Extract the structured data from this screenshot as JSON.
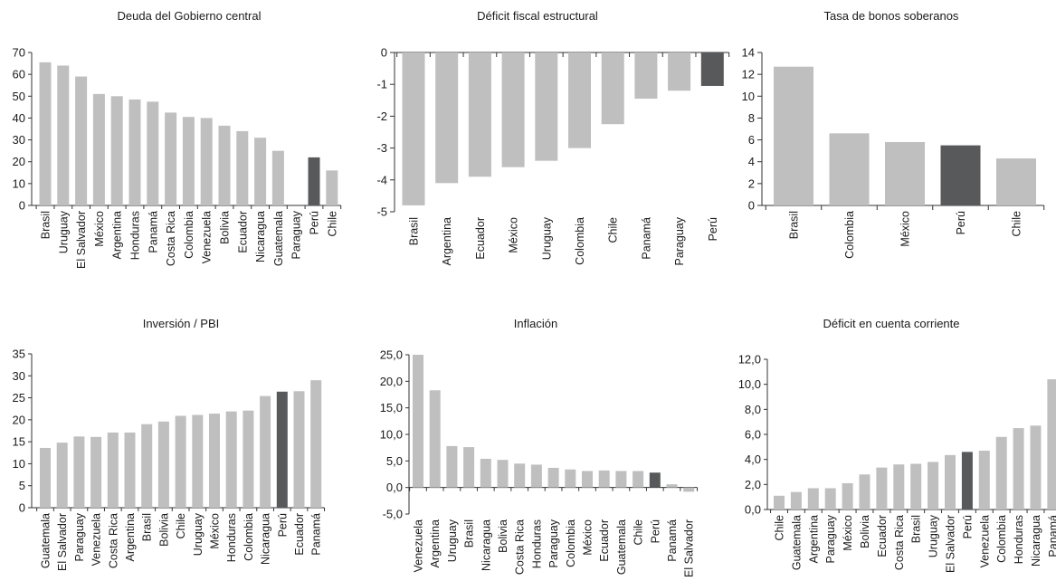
{
  "colors": {
    "bar": "#bfbfbf",
    "highlight": "#58595b",
    "axis": "#333333",
    "text": "#1a1a1a"
  },
  "chart_data": [
    {
      "type": "bar",
      "title": "Deuda del Gobierno central",
      "categories": [
        "Brasil",
        "Uruguay",
        "El Salvador",
        "México",
        "Argentina",
        "Honduras",
        "Panamá",
        "Costa Rica",
        "Colombia",
        "Venezuela",
        "Bolivia",
        "Ecuador",
        "Nicaragua",
        "Guatemala",
        "Paraguay",
        "Perú",
        "Chile"
      ],
      "values": [
        65.5,
        64,
        59,
        51,
        50,
        48.5,
        47.5,
        42.5,
        40.5,
        40,
        36.5,
        34,
        31,
        25,
        0,
        22,
        16
      ],
      "highlight": "Perú",
      "ylim": [
        0,
        70
      ],
      "yticks": [
        "0",
        "10",
        "20",
        "30",
        "40",
        "50",
        "60",
        "70"
      ],
      "grid": false
    },
    {
      "type": "bar",
      "title": "Déficit fiscal estructural",
      "categories": [
        "Brasil",
        "Argentina",
        "Ecuador",
        "México",
        "Uruguay",
        "Colombia",
        "Chile",
        "Panamá",
        "Paraguay",
        "Perú"
      ],
      "values": [
        -4.8,
        -4.1,
        -3.9,
        -3.6,
        -3.4,
        -3.0,
        -2.25,
        -1.45,
        -1.2,
        -1.05
      ],
      "highlight": "Perú",
      "ylim": [
        -5,
        0
      ],
      "yticks": [
        "-5",
        "-4",
        "-3",
        "-2",
        "-1",
        "0"
      ],
      "grid": false
    },
    {
      "type": "bar",
      "title": "Tasa de bonos soberanos",
      "categories": [
        "Brasil",
        "Colombia",
        "México",
        "Perú",
        "Chile"
      ],
      "values": [
        12.7,
        6.6,
        5.8,
        5.5,
        4.3
      ],
      "highlight": "Perú",
      "ylim": [
        0,
        14
      ],
      "yticks": [
        "0",
        "2",
        "4",
        "6",
        "8",
        "10",
        "12",
        "14"
      ],
      "grid": false
    },
    {
      "type": "bar",
      "title": "Inversión / PBI",
      "categories": [
        "Guatemala",
        "El Salvador",
        "Paraguay",
        "Venezuela",
        "Costa Rica",
        "Argentina",
        "Brasil",
        "Bolivia",
        "Chile",
        "Uruguay",
        "México",
        "Honduras",
        "Colombia",
        "Nicaragua",
        "Perú",
        "Ecuador",
        "Panamá"
      ],
      "values": [
        13.6,
        14.8,
        16.2,
        16.1,
        17.1,
        17.1,
        19.0,
        19.6,
        20.9,
        21.1,
        21.4,
        21.9,
        22.1,
        25.4,
        26.4,
        26.5,
        29.0
      ],
      "highlight": "Perú",
      "ylim": [
        0,
        35
      ],
      "yticks": [
        "0",
        "5",
        "10",
        "15",
        "20",
        "25",
        "30",
        "35"
      ],
      "grid": false
    },
    {
      "type": "bar",
      "title": "Inflación",
      "categories": [
        "Venezuela",
        "Argentina",
        "Uruguay",
        "Brasil",
        "Nicaragua",
        "Bolivia",
        "Costa Rica",
        "Honduras",
        "Paraguay",
        "Colombia",
        "México",
        "Ecuador",
        "Guatemala",
        "Chile",
        "Perú",
        "Panamá",
        "El Salvador"
      ],
      "values": [
        25.0,
        18.3,
        7.8,
        7.6,
        5.4,
        5.2,
        4.5,
        4.3,
        3.7,
        3.4,
        3.1,
        3.2,
        3.1,
        3.1,
        2.8,
        0.6,
        -0.8
      ],
      "highlight": "Perú",
      "ylim": [
        -5,
        25
      ],
      "yticks": [
        "-5,0",
        "0,0",
        "5,0",
        "10,0",
        "15,0",
        "20,0",
        "25,0"
      ],
      "grid": false
    },
    {
      "type": "bar",
      "title": "Déficit en cuenta corriente",
      "categories": [
        "Chile",
        "Guatemala",
        "Argentina",
        "Paraguay",
        "México",
        "Bolivia",
        "Ecuador",
        "Costa Rica",
        "Brasil",
        "Uruguay",
        "El Salvador",
        "Perú",
        "Venezuela",
        "Colombia",
        "Honduras",
        "Nicaragua",
        "Panamá"
      ],
      "values": [
        1.1,
        1.4,
        1.7,
        1.7,
        2.1,
        2.8,
        3.35,
        3.6,
        3.65,
        3.8,
        4.35,
        4.6,
        4.7,
        5.8,
        6.5,
        6.7,
        10.4
      ],
      "highlight": "Perú",
      "ylim": [
        0,
        12
      ],
      "yticks": [
        "0,0",
        "2,0",
        "4,0",
        "6,0",
        "8,0",
        "10,0",
        "12,0"
      ],
      "grid": false
    }
  ]
}
